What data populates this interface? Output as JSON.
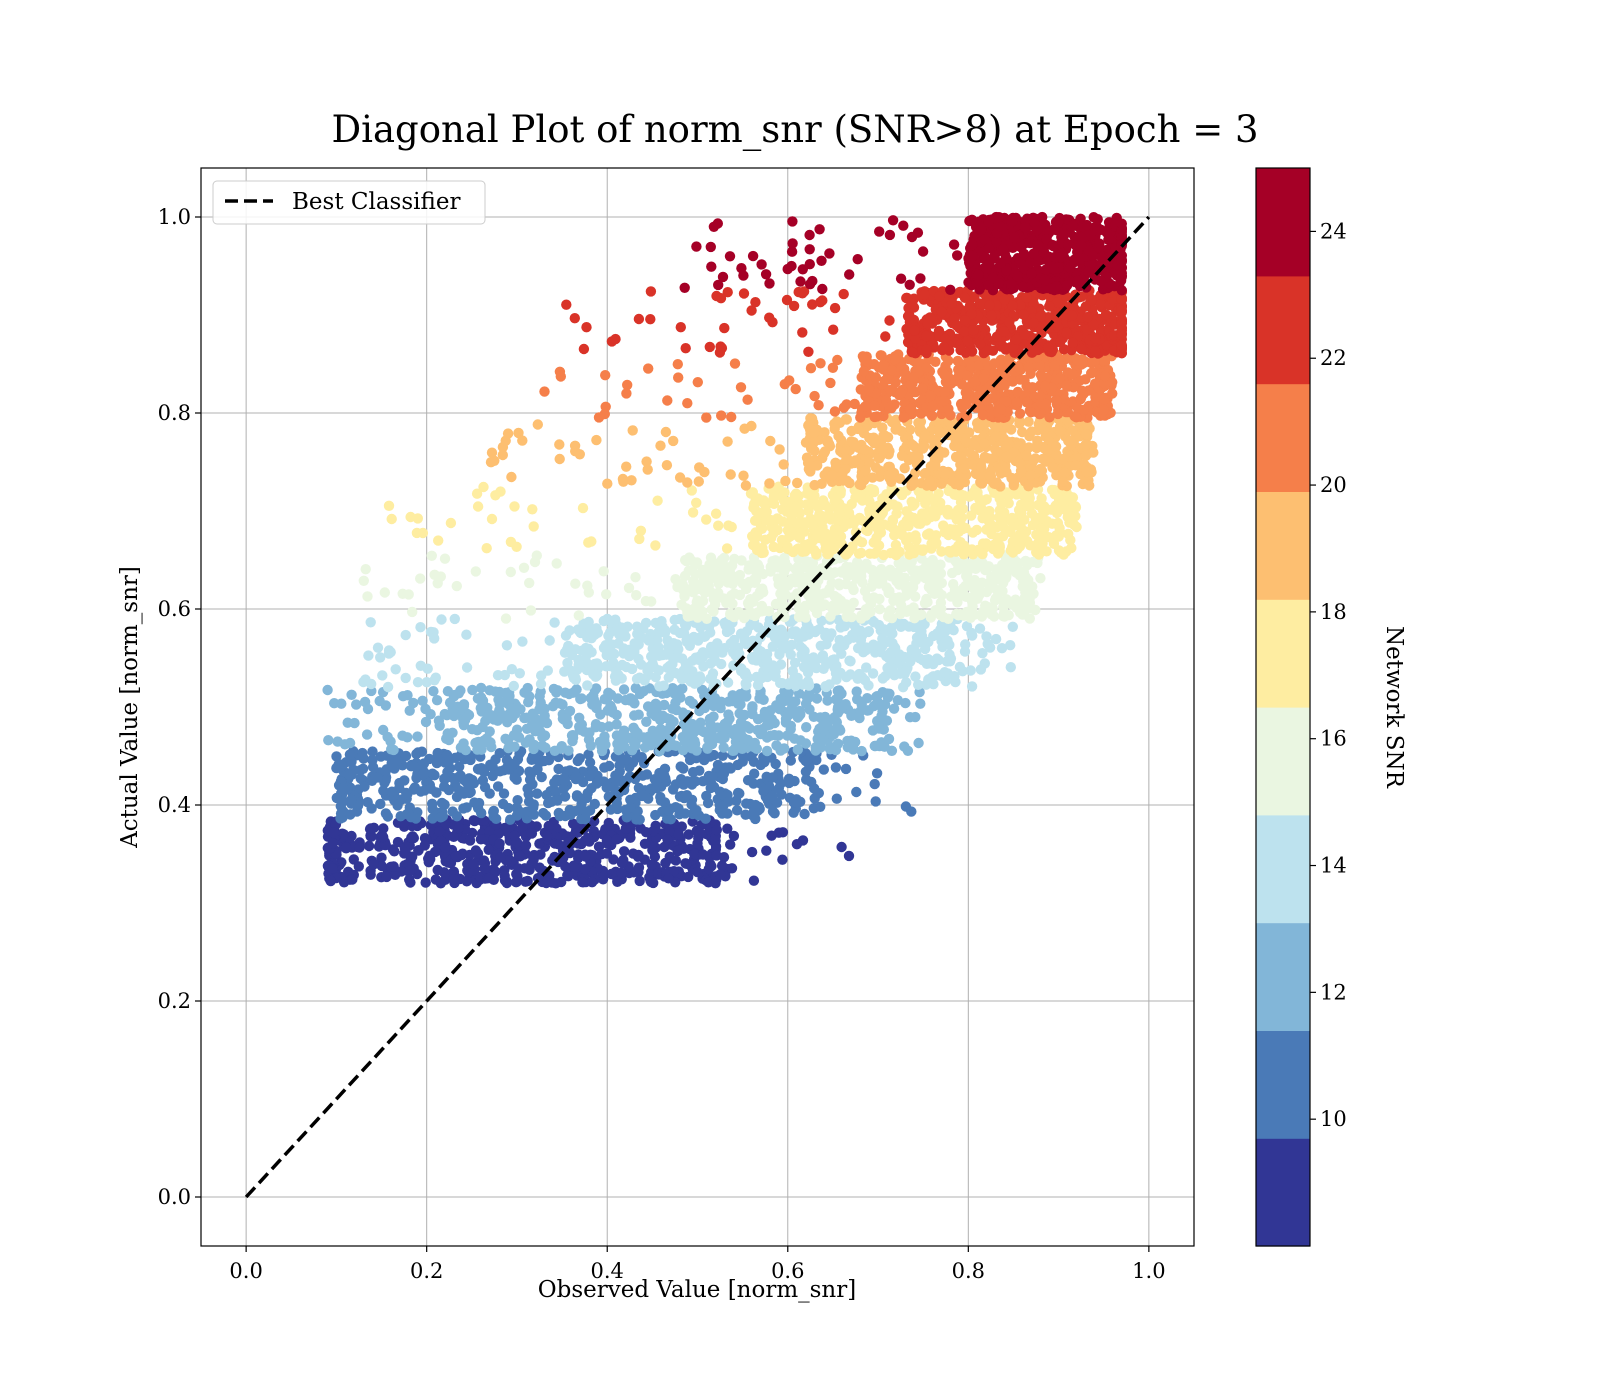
{
  "chart_data": {
    "type": "scatter",
    "title": "Diagonal Plot of norm_snr (SNR>8) at Epoch = 3",
    "xlabel": "Observed Value [norm_snr]",
    "ylabel": "Actual Value [norm_snr]",
    "xlim": [
      -0.05,
      1.05
    ],
    "ylim": [
      -0.05,
      1.05
    ],
    "x_ticks": [
      "0.0",
      "0.2",
      "0.4",
      "0.6",
      "0.8",
      "1.0"
    ],
    "y_ticks": [
      "0.0",
      "0.2",
      "0.4",
      "0.6",
      "0.8",
      "1.0"
    ],
    "grid": true,
    "legend": {
      "placement": "upper-left",
      "entries": [
        "Best Classifier"
      ]
    },
    "reference_line": {
      "name": "Best Classifier",
      "style": "dashed",
      "color": "#000000",
      "x": [
        0.0,
        1.0
      ],
      "y": [
        0.0,
        1.0
      ]
    },
    "colorbar": {
      "label": "Network SNR",
      "range": [
        8,
        25
      ],
      "ticks": [
        "10",
        "12",
        "14",
        "16",
        "18",
        "20",
        "22",
        "24"
      ],
      "bins": [
        {
          "range": [
            8,
            9.7
          ],
          "color": "#313695"
        },
        {
          "range": [
            9.7,
            11.4
          ],
          "color": "#4a7ab7"
        },
        {
          "range": [
            11.4,
            13.1
          ],
          "color": "#82b6d8"
        },
        {
          "range": [
            13.1,
            14.8
          ],
          "color": "#bde2ee"
        },
        {
          "range": [
            14.8,
            16.5
          ],
          "color": "#eaf6e1"
        },
        {
          "range": [
            16.5,
            18.2
          ],
          "color": "#feeda1"
        },
        {
          "range": [
            18.2,
            19.9
          ],
          "color": "#fdbf71"
        },
        {
          "range": [
            19.9,
            21.6
          ],
          "color": "#f57f4a"
        },
        {
          "range": [
            21.6,
            23.3
          ],
          "color": "#d93328"
        },
        {
          "range": [
            23.3,
            25
          ],
          "color": "#a50026"
        }
      ]
    },
    "series_bands": [
      {
        "snr_bin": "8–9.7",
        "y_range": [
          0.32,
          0.385
        ],
        "x_core": [
          0.1,
          0.52
        ],
        "x_extent": [
          0.09,
          0.67
        ]
      },
      {
        "snr_bin": "9.7–11.4",
        "y_range": [
          0.385,
          0.455
        ],
        "x_core": [
          0.12,
          0.62
        ],
        "x_extent": [
          0.1,
          0.74
        ]
      },
      {
        "snr_bin": "11.4–13.1",
        "y_range": [
          0.455,
          0.52
        ],
        "x_core": [
          0.22,
          0.7
        ],
        "x_extent": [
          0.09,
          0.75
        ]
      },
      {
        "snr_bin": "13.1–14.8",
        "y_range": [
          0.52,
          0.59
        ],
        "x_core": [
          0.35,
          0.78
        ],
        "x_extent": [
          0.11,
          0.85
        ]
      },
      {
        "snr_bin": "14.8–16.5",
        "y_range": [
          0.59,
          0.655
        ],
        "x_core": [
          0.48,
          0.86
        ],
        "x_extent": [
          0.13,
          0.88
        ]
      },
      {
        "snr_bin": "16.5–18.2",
        "y_range": [
          0.655,
          0.725
        ],
        "x_core": [
          0.56,
          0.9
        ],
        "x_extent": [
          0.15,
          0.92
        ]
      },
      {
        "snr_bin": "18.2–19.9",
        "y_range": [
          0.725,
          0.795
        ],
        "x_core": [
          0.62,
          0.93
        ],
        "x_extent": [
          0.26,
          0.94
        ]
      },
      {
        "snr_bin": "19.9–21.6",
        "y_range": [
          0.795,
          0.86
        ],
        "x_core": [
          0.68,
          0.95
        ],
        "x_extent": [
          0.33,
          0.96
        ]
      },
      {
        "snr_bin": "21.6–23.3",
        "y_range": [
          0.86,
          0.925
        ],
        "x_core": [
          0.73,
          0.97
        ],
        "x_extent": [
          0.34,
          0.97
        ]
      },
      {
        "snr_bin": "23.3–25",
        "y_range": [
          0.925,
          1.0
        ],
        "x_core": [
          0.8,
          0.97
        ],
        "x_extent": [
          0.47,
          0.97
        ]
      }
    ]
  }
}
